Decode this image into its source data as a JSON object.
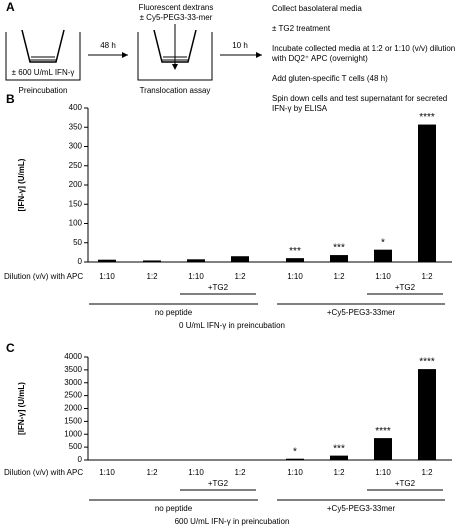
{
  "diagram": {
    "panel": "A",
    "left_condition": "± 600 U/mL IFN-γ",
    "left_caption": "Preincubation",
    "arrow1": "48 h",
    "top_label_1": "Fluorescent dextrans",
    "top_label_2": "± Cy5-PEG3-33-mer",
    "middle_caption": "Translocation assay",
    "arrow2": "10 h",
    "steps": [
      "Collect basolateral media",
      "± TG2 treatment",
      "Incubate collected media at 1:2 or 1:10 (v/v) dilution with DQ2⁺ APC (overnight)",
      "Add gluten-specific T cells (48 h)",
      "Spin down cells and test supernatant for secreted IFN-γ by ELISA"
    ]
  },
  "chart_data": [
    {
      "type": "bar",
      "panel": "B",
      "y_label": "[IFN-γ] (U/mL)",
      "x_label": "Dilution (v/v) with APC",
      "categories": [
        "1:10",
        "1:2",
        "1:10",
        "1:2",
        "1:10",
        "1:2",
        "1:10",
        "1:2"
      ],
      "values": [
        6,
        4,
        7,
        15,
        10,
        18,
        32,
        357
      ],
      "color": "#000000",
      "annotations": [
        null,
        null,
        null,
        null,
        "***",
        "***",
        "*",
        "****"
      ],
      "tg2_label": "+TG2",
      "peptide_groups": [
        "no peptide",
        "+Cy5-PEG3-33mer"
      ],
      "caption": "0 U/mL IFN-γ in preincubation",
      "ylim": [
        0,
        400
      ],
      "yticks": [
        0,
        50,
        100,
        150,
        200,
        250,
        300,
        350,
        400
      ]
    },
    {
      "type": "bar",
      "panel": "C",
      "y_label": "[IFN-γ] (U/mL)",
      "x_label": "Dilution (v/v) with APC",
      "categories": [
        "1:10",
        "1:2",
        "1:10",
        "1:2",
        "1:10",
        "1:2",
        "1:10",
        "1:2"
      ],
      "values": [
        0,
        0,
        0,
        0,
        50,
        170,
        850,
        3530
      ],
      "color": "#000000",
      "annotations": [
        null,
        null,
        null,
        null,
        "*",
        "***",
        "****",
        "****"
      ],
      "tg2_label": "+TG2",
      "peptide_groups": [
        "no peptide",
        "+Cy5-PEG3-33mer"
      ],
      "caption": "600 U/mL IFN-γ in preincubation",
      "ylim": [
        0,
        4000
      ],
      "yticks": [
        0,
        500,
        1000,
        1500,
        2000,
        2500,
        3000,
        3500,
        4000
      ]
    }
  ]
}
